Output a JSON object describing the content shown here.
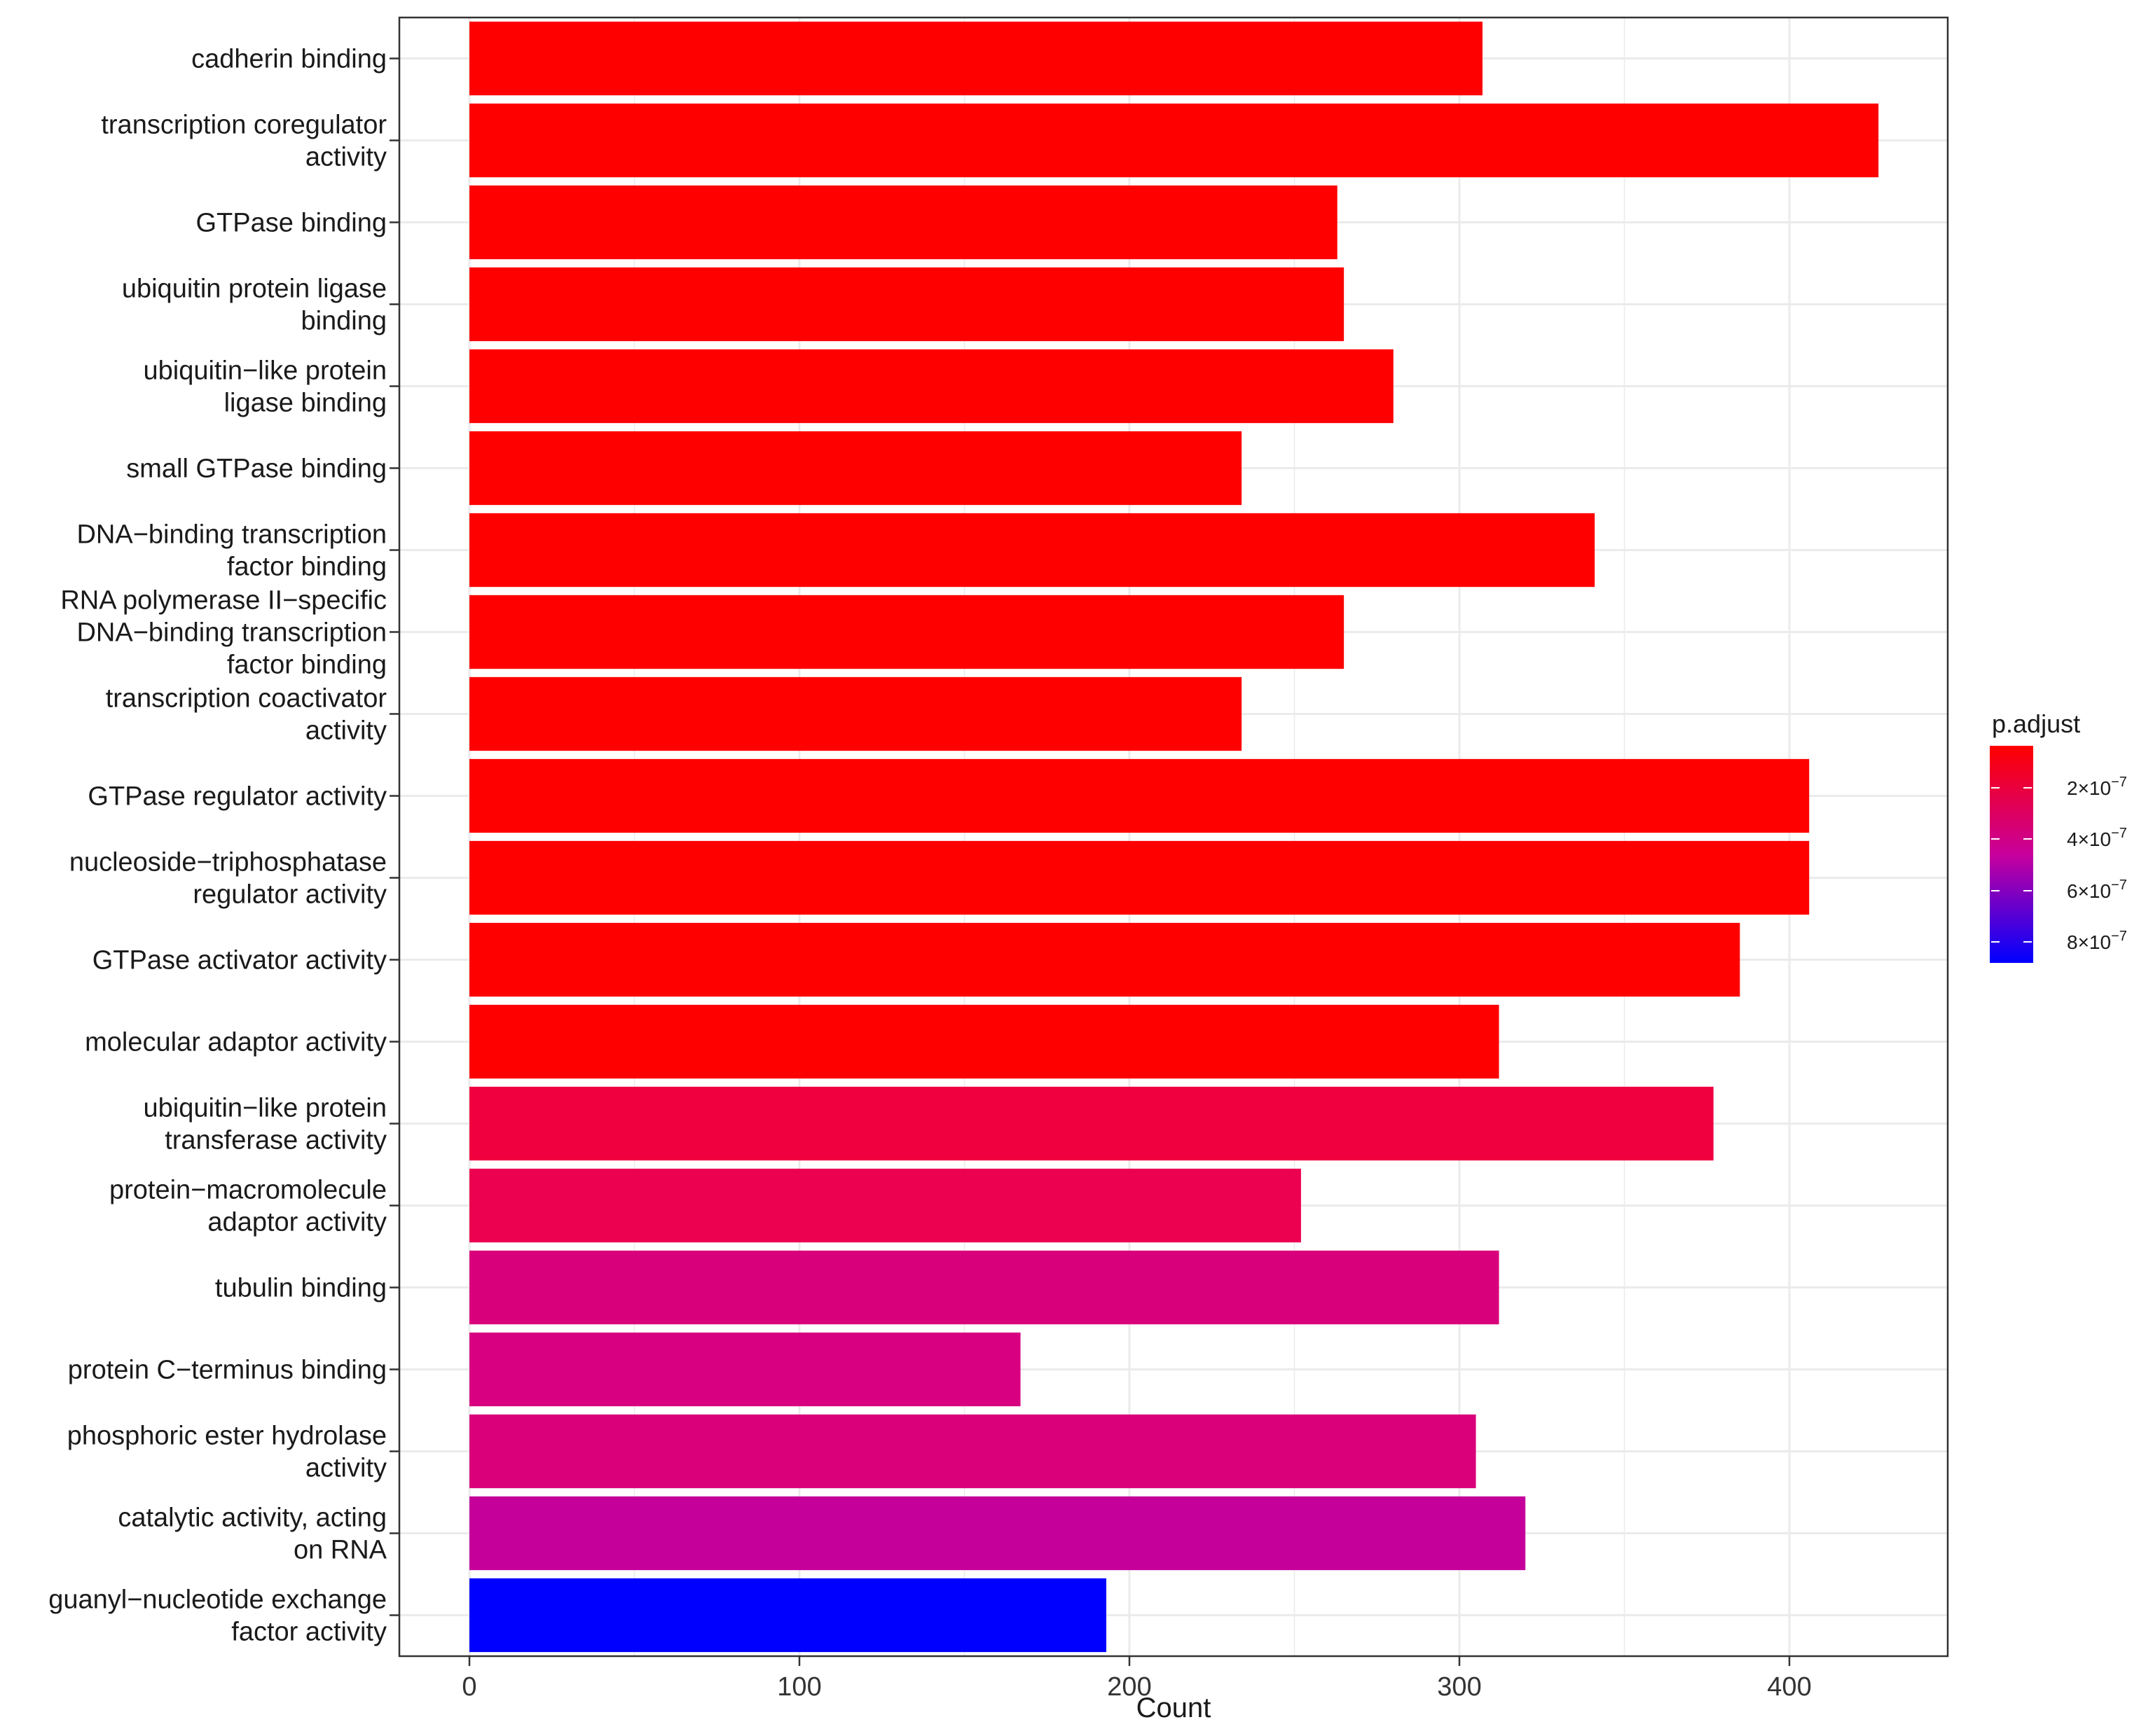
{
  "chart_data": {
    "type": "bar",
    "orientation": "horizontal",
    "xlabel": "Count",
    "ylabel": "",
    "xlim": [
      -21,
      448
    ],
    "xticks": [
      0,
      100,
      200,
      300,
      400
    ],
    "grid": true,
    "categories": [
      [
        "cadherin binding"
      ],
      [
        "transcription coregulator",
        "activity"
      ],
      [
        "GTPase binding"
      ],
      [
        "ubiquitin protein ligase",
        "binding"
      ],
      [
        "ubiquitin−like protein",
        "ligase binding"
      ],
      [
        "small GTPase binding"
      ],
      [
        "DNA−binding transcription",
        "factor binding"
      ],
      [
        "RNA polymerase II−specific",
        "DNA−binding transcription",
        "factor binding"
      ],
      [
        "transcription coactivator",
        "activity"
      ],
      [
        "GTPase regulator activity"
      ],
      [
        "nucleoside−triphosphatase",
        "regulator activity"
      ],
      [
        "GTPase activator activity"
      ],
      [
        "molecular adaptor activity"
      ],
      [
        "ubiquitin−like protein",
        "transferase activity"
      ],
      [
        "protein−macromolecule",
        "adaptor activity"
      ],
      [
        "tubulin binding"
      ],
      [
        "protein C−terminus binding"
      ],
      [
        "phosphoric ester hydrolase",
        "activity"
      ],
      [
        "catalytic activity, acting",
        "on RNA"
      ],
      [
        "guanyl−nucleotide exchange",
        "factor activity"
      ]
    ],
    "values": [
      307,
      427,
      263,
      265,
      280,
      234,
      341,
      265,
      234,
      406,
      406,
      385,
      312,
      377,
      252,
      312,
      167,
      305,
      320,
      193
    ],
    "colors": [
      "#fe0000",
      "#fe0000",
      "#fe0000",
      "#fe0000",
      "#fe0000",
      "#fe0000",
      "#fe0000",
      "#fe0000",
      "#fe0000",
      "#fe0000",
      "#fe0000",
      "#fe0000",
      "#fe0000",
      "#f0003f",
      "#ec0050",
      "#d9007c",
      "#d80080",
      "#da007a",
      "#c5009a",
      "#0000ff"
    ],
    "legend": {
      "title": "p.adjust",
      "position": "right",
      "gradient_top": "#ff0000",
      "gradient_bottom": "#0000ff",
      "labels": [
        {
          "base": "2×10",
          "exp": "−7"
        },
        {
          "base": "4×10",
          "exp": "−7"
        },
        {
          "base": "6×10",
          "exp": "−7"
        },
        {
          "base": "8×10",
          "exp": "−7"
        }
      ]
    }
  }
}
